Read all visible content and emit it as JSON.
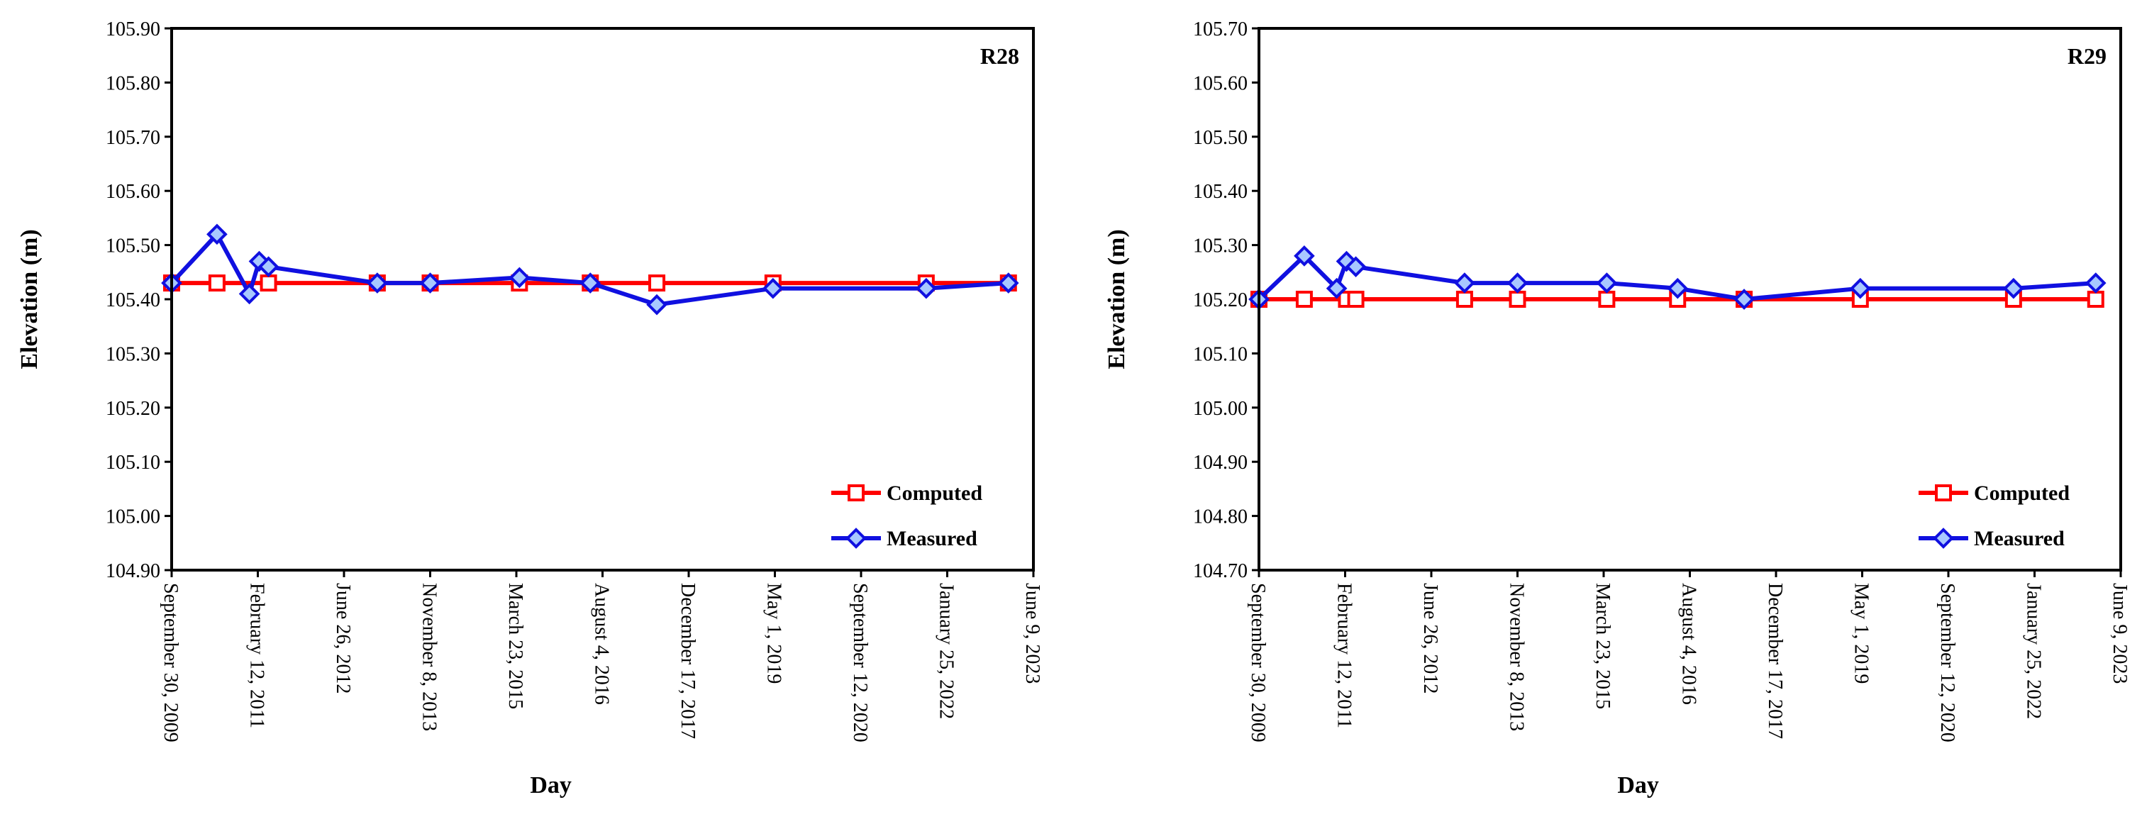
{
  "colors": {
    "computed": "#ff0000",
    "measured": "#1010e0",
    "axis": "#000000",
    "background": "#ffffff"
  },
  "chart_data": [
    {
      "type": "line",
      "title": "R28",
      "xlabel": "Day",
      "ylabel": "Elevation (m)",
      "ylim": [
        104.9,
        105.9
      ],
      "y_ticks": [
        "104.90",
        "105.00",
        "105.10",
        "105.20",
        "105.30",
        "105.40",
        "105.50",
        "105.60",
        "105.70",
        "105.80",
        "105.90"
      ],
      "xlim": [
        "2009-09-30",
        "2023-06-09"
      ],
      "x_ticks": [
        {
          "date": "2009-09-30",
          "label": "September 30, 2009"
        },
        {
          "date": "2011-02-12",
          "label": "February 12, 2011"
        },
        {
          "date": "2012-06-26",
          "label": "June 26, 2012"
        },
        {
          "date": "2013-11-08",
          "label": "November 8, 2013"
        },
        {
          "date": "2015-03-23",
          "label": "March 23, 2015"
        },
        {
          "date": "2016-08-04",
          "label": "August 4, 2016"
        },
        {
          "date": "2017-12-17",
          "label": "December 17, 2017"
        },
        {
          "date": "2019-05-01",
          "label": "May 1, 2019"
        },
        {
          "date": "2020-09-12",
          "label": "September 12, 2020"
        },
        {
          "date": "2022-01-25",
          "label": "January 25, 2022"
        },
        {
          "date": "2023-06-09",
          "label": "June 9, 2023"
        }
      ],
      "grid": false,
      "legend_position": "bottom-right",
      "series": [
        {
          "name": "Computed",
          "marker": "square",
          "points": [
            {
              "x": "2009-09-30",
              "y": 105.43
            },
            {
              "x": "2010-06-20",
              "y": 105.43
            },
            {
              "x": "2011-04-15",
              "y": 105.43
            },
            {
              "x": "2013-01-05",
              "y": 105.43
            },
            {
              "x": "2013-11-08",
              "y": 105.43
            },
            {
              "x": "2015-04-10",
              "y": 105.43
            },
            {
              "x": "2016-05-25",
              "y": 105.43
            },
            {
              "x": "2017-06-15",
              "y": 105.43
            },
            {
              "x": "2019-04-20",
              "y": 105.43
            },
            {
              "x": "2021-09-25",
              "y": 105.43
            },
            {
              "x": "2023-01-15",
              "y": 105.43
            }
          ]
        },
        {
          "name": "Measured",
          "marker": "diamond",
          "points": [
            {
              "x": "2009-09-30",
              "y": 105.43
            },
            {
              "x": "2010-06-20",
              "y": 105.52
            },
            {
              "x": "2010-12-25",
              "y": 105.41
            },
            {
              "x": "2011-02-20",
              "y": 105.47
            },
            {
              "x": "2011-04-15",
              "y": 105.46
            },
            {
              "x": "2013-01-05",
              "y": 105.43
            },
            {
              "x": "2013-11-08",
              "y": 105.43
            },
            {
              "x": "2015-04-10",
              "y": 105.44
            },
            {
              "x": "2016-05-25",
              "y": 105.43
            },
            {
              "x": "2017-06-15",
              "y": 105.39
            },
            {
              "x": "2019-04-20",
              "y": 105.42
            },
            {
              "x": "2021-09-25",
              "y": 105.42
            },
            {
              "x": "2023-01-15",
              "y": 105.43
            }
          ]
        }
      ]
    },
    {
      "type": "line",
      "title": "R29",
      "xlabel": "Day",
      "ylabel": "Elevation (m)",
      "ylim": [
        104.7,
        105.7
      ],
      "y_ticks": [
        "104.70",
        "104.80",
        "104.90",
        "105.00",
        "105.10",
        "105.20",
        "105.30",
        "105.40",
        "105.50",
        "105.60",
        "105.70"
      ],
      "xlim": [
        "2009-09-30",
        "2023-06-09"
      ],
      "x_ticks": [
        {
          "date": "2009-09-30",
          "label": "September 30, 2009"
        },
        {
          "date": "2011-02-12",
          "label": "February 12, 2011"
        },
        {
          "date": "2012-06-26",
          "label": "June 26, 2012"
        },
        {
          "date": "2013-11-08",
          "label": "November 8, 2013"
        },
        {
          "date": "2015-03-23",
          "label": "March 23, 2015"
        },
        {
          "date": "2016-08-04",
          "label": "August 4, 2016"
        },
        {
          "date": "2017-12-17",
          "label": "December 17, 2017"
        },
        {
          "date": "2019-05-01",
          "label": "May 1, 2019"
        },
        {
          "date": "2020-09-12",
          "label": "September 12, 2020"
        },
        {
          "date": "2022-01-25",
          "label": "January 25, 2022"
        },
        {
          "date": "2023-06-09",
          "label": "June 9, 2023"
        }
      ],
      "grid": false,
      "legend_position": "bottom-right",
      "series": [
        {
          "name": "Computed",
          "marker": "square",
          "points": [
            {
              "x": "2009-09-30",
              "y": 105.2
            },
            {
              "x": "2010-06-20",
              "y": 105.2
            },
            {
              "x": "2011-02-20",
              "y": 105.2
            },
            {
              "x": "2011-04-15",
              "y": 105.2
            },
            {
              "x": "2013-01-05",
              "y": 105.2
            },
            {
              "x": "2013-11-08",
              "y": 105.2
            },
            {
              "x": "2015-04-10",
              "y": 105.2
            },
            {
              "x": "2016-05-25",
              "y": 105.2
            },
            {
              "x": "2017-06-15",
              "y": 105.2
            },
            {
              "x": "2019-04-20",
              "y": 105.2
            },
            {
              "x": "2021-09-25",
              "y": 105.2
            },
            {
              "x": "2023-01-15",
              "y": 105.2
            }
          ]
        },
        {
          "name": "Measured",
          "marker": "diamond",
          "points": [
            {
              "x": "2009-09-30",
              "y": 105.2
            },
            {
              "x": "2010-06-20",
              "y": 105.28
            },
            {
              "x": "2010-12-25",
              "y": 105.22
            },
            {
              "x": "2011-02-20",
              "y": 105.27
            },
            {
              "x": "2011-04-15",
              "y": 105.26
            },
            {
              "x": "2013-01-05",
              "y": 105.23
            },
            {
              "x": "2013-11-08",
              "y": 105.23
            },
            {
              "x": "2015-04-10",
              "y": 105.23
            },
            {
              "x": "2016-05-25",
              "y": 105.22
            },
            {
              "x": "2017-06-15",
              "y": 105.2
            },
            {
              "x": "2019-04-20",
              "y": 105.22
            },
            {
              "x": "2021-09-25",
              "y": 105.22
            },
            {
              "x": "2023-01-15",
              "y": 105.23
            }
          ]
        }
      ]
    }
  ]
}
